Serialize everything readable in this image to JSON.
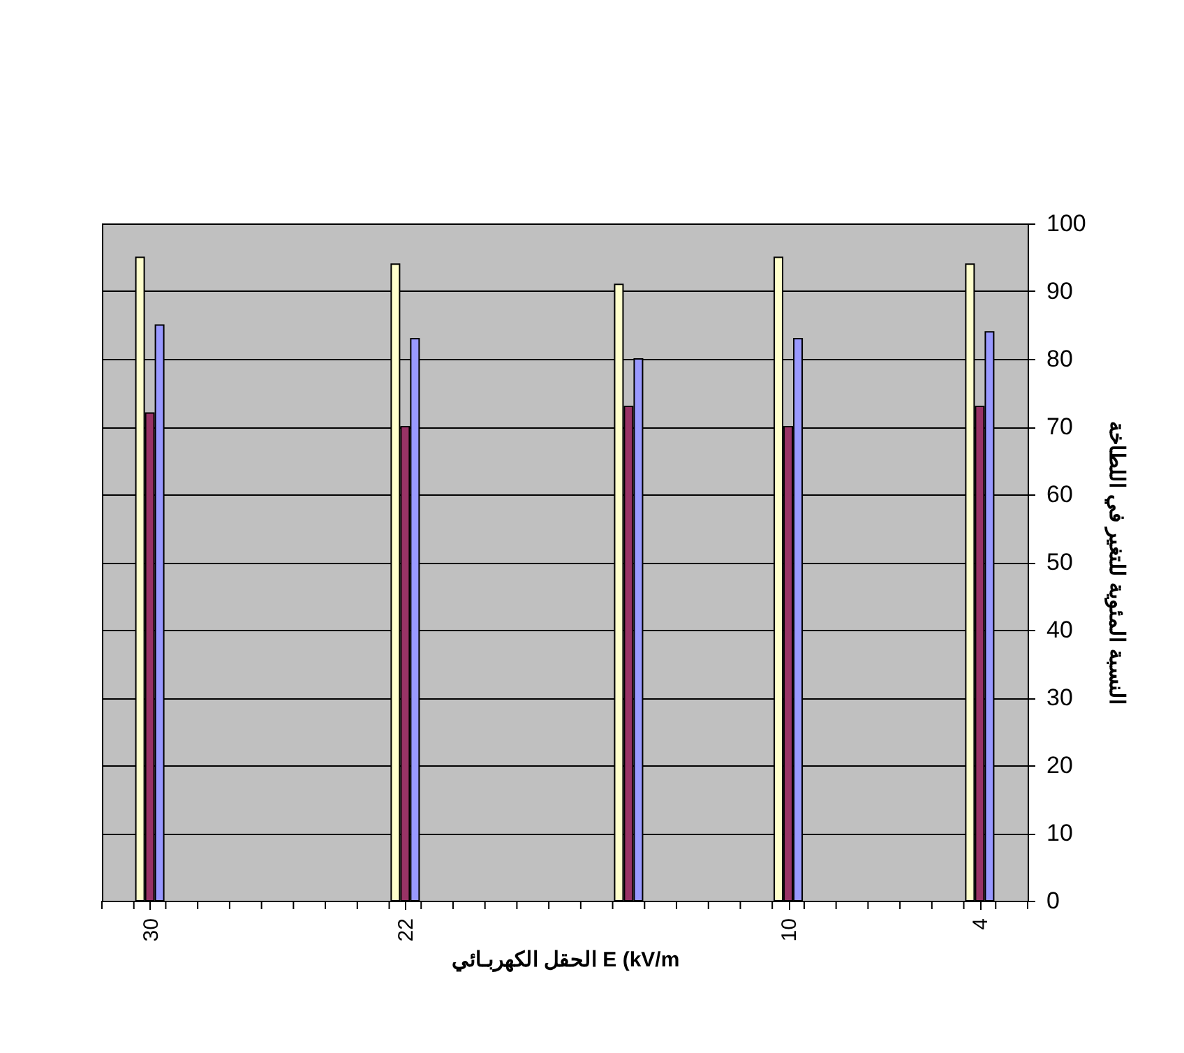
{
  "chart_data": {
    "type": "bar",
    "xlabel": "الحقل الكهربـائي E (kV/m",
    "ylabel": "النسبة المئوية للتغير في اللطاخة",
    "x": [
      30,
      22,
      15,
      10,
      4
    ],
    "series": [
      {
        "color": "#ffffcc",
        "values": [
          95,
          94,
          91,
          95,
          94
        ]
      },
      {
        "color": "#993366",
        "values": [
          72,
          70,
          73,
          70,
          73
        ]
      },
      {
        "color": "#9999ff",
        "values": [
          85,
          83,
          80,
          83,
          84
        ]
      }
    ],
    "xlim": [
      31.5,
      2.5
    ],
    "xticks": [
      30,
      22,
      10,
      4,
      {
        "value": 31.5,
        "label": null
      },
      {
        "value": 30.5,
        "label": null
      },
      {
        "value": 29.5,
        "label": null
      },
      {
        "value": 28.5,
        "label": null
      },
      {
        "value": 27.5,
        "label": null
      },
      {
        "value": 26.5,
        "label": null
      },
      {
        "value": 25.5,
        "label": null
      },
      {
        "value": 24.5,
        "label": null
      },
      {
        "value": 23.5,
        "label": null
      },
      {
        "value": 22.5,
        "label": null
      },
      {
        "value": 21.5,
        "label": null
      },
      {
        "value": 20.5,
        "label": null
      },
      {
        "value": 19.5,
        "label": null
      },
      {
        "value": 18.5,
        "label": null
      },
      {
        "value": 17.5,
        "label": null
      },
      {
        "value": 16.5,
        "label": null
      },
      {
        "value": 15.5,
        "label": null
      },
      {
        "value": 14.5,
        "label": null
      },
      {
        "value": 13.5,
        "label": null
      },
      {
        "value": 12.5,
        "label": null
      },
      {
        "value": 11.5,
        "label": null
      },
      {
        "value": 10.5,
        "label": null
      },
      {
        "value": 9.5,
        "label": null
      },
      {
        "value": 8.5,
        "label": null
      },
      {
        "value": 7.5,
        "label": null
      },
      {
        "value": 6.5,
        "label": null
      },
      {
        "value": 5.5,
        "label": null
      },
      {
        "value": 4.5,
        "label": null
      },
      {
        "value": 3.5,
        "label": null
      },
      {
        "value": 2.5,
        "label": null
      }
    ],
    "ylim": [
      0,
      100
    ],
    "yticks": [
      0,
      10,
      20,
      30,
      40,
      50,
      60,
      70,
      80,
      90,
      100
    ],
    "grid": "y"
  }
}
